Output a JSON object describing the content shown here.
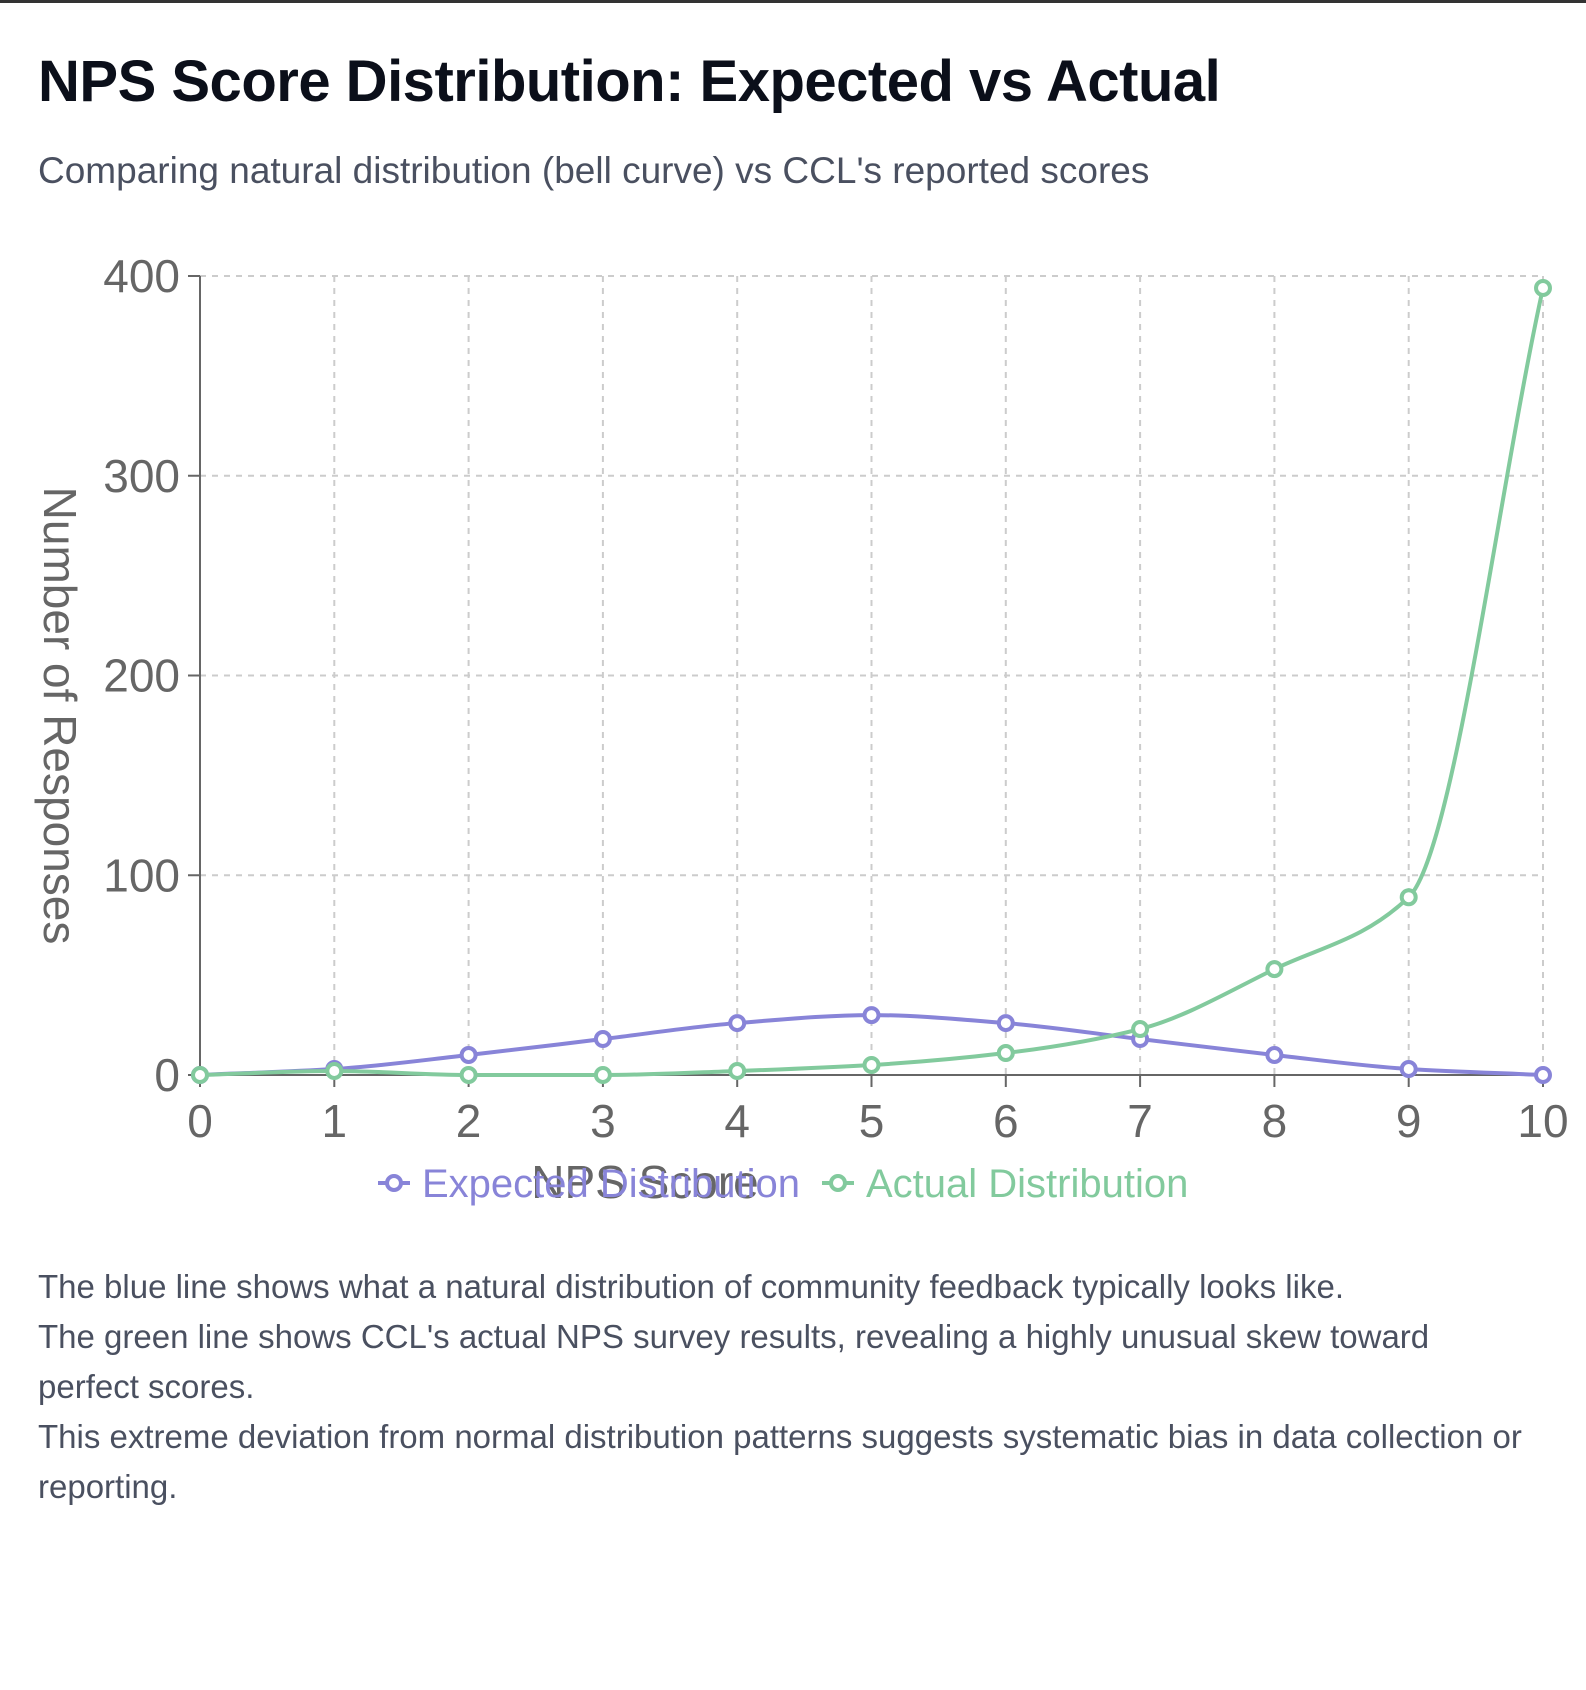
{
  "header": {
    "title": "NPS Score Distribution: Expected vs Actual",
    "subtitle": "Comparing natural distribution (bell curve) vs CCL's reported scores"
  },
  "chart_data": {
    "type": "line",
    "x": [
      0,
      1,
      2,
      3,
      4,
      5,
      6,
      7,
      8,
      9,
      10
    ],
    "series": [
      {
        "name": "Expected Distribution",
        "color": "#8884d8",
        "values": [
          0,
          3,
          10,
          18,
          26,
          30,
          26,
          18,
          10,
          3,
          0
        ]
      },
      {
        "name": "Actual Distribution",
        "color": "#82ca9d",
        "values": [
          0,
          2,
          0,
          0,
          2,
          5,
          11,
          23,
          53,
          89,
          394
        ]
      }
    ],
    "xlabel": "NPS Score",
    "ylabel": "Number of Responses",
    "xlim": [
      0,
      10
    ],
    "ylim": [
      0,
      400
    ],
    "yticks": [
      0,
      100,
      200,
      300,
      400
    ],
    "grid": true,
    "legend": "bottom"
  },
  "notes": {
    "line1": "The blue line shows what a natural distribution of community feedback typically looks like.",
    "line2": "The green line shows CCL's actual NPS survey results, revealing a highly unusual skew toward perfect scores.",
    "line3": "This extreme deviation from normal distribution patterns suggests systematic bias in data collection or reporting."
  }
}
